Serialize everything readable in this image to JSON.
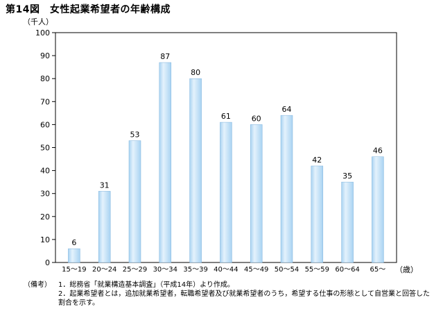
{
  "title": "第14図　女性起業希望者の年齢構成",
  "chart_data": {
    "type": "bar",
    "ylabel": "（千人）",
    "xunit": "（歳）",
    "categories": [
      "15～19",
      "20～24",
      "25～29",
      "30～34",
      "35～39",
      "40～44",
      "45～49",
      "50～54",
      "55～59",
      "60～64",
      "65～"
    ],
    "values": [
      6,
      31,
      53,
      87,
      80,
      61,
      60,
      64,
      42,
      35,
      46
    ],
    "ylim": [
      0,
      100
    ],
    "yticks": [
      0,
      10,
      20,
      30,
      40,
      50,
      60,
      70,
      80,
      90,
      100
    ],
    "grid": false,
    "bar_color": "#a9d3f2",
    "bar_highlight": "#e4f2fc"
  },
  "notes": {
    "label": "（備考）",
    "items": [
      "1．総務省「就業構造基本調査」（平成14年）より作成。",
      "2．起業希望者とは，追加就業希望者，転職希望者及び就業希望者のうち，希望する仕事の形態として自営業と回答した割合を示す。"
    ]
  }
}
